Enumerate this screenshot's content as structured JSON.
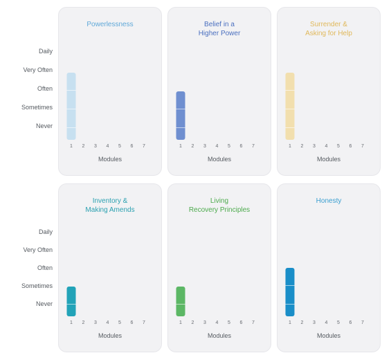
{
  "chart_data": [
    {
      "type": "bar",
      "title": "Powerlessness",
      "xlabel": "Modules",
      "color": "#c7e0f0",
      "title_color": "#5fa8d8",
      "categories": [
        "1",
        "2",
        "3",
        "4",
        "5",
        "6",
        "7"
      ],
      "values": [
        4,
        null,
        null,
        null,
        null,
        null,
        null
      ],
      "ylim": [
        1,
        5
      ],
      "yticks": [
        "Never",
        "Sometimes",
        "Often",
        "Very Often",
        "Daily"
      ]
    },
    {
      "type": "bar",
      "title": "Belief in a\nHigher Power",
      "xlabel": "Modules",
      "color": "#6f8fd0",
      "title_color": "#4a6fbf",
      "categories": [
        "1",
        "2",
        "3",
        "4",
        "5",
        "6",
        "7"
      ],
      "values": [
        3,
        null,
        null,
        null,
        null,
        null,
        null
      ],
      "ylim": [
        1,
        5
      ],
      "yticks": [
        "Never",
        "Sometimes",
        "Often",
        "Very Often",
        "Daily"
      ]
    },
    {
      "type": "bar",
      "title": "Surrender &\nAsking for Help",
      "xlabel": "Modules",
      "color": "#f2dfae",
      "title_color": "#e0b85a",
      "categories": [
        "1",
        "2",
        "3",
        "4",
        "5",
        "6",
        "7"
      ],
      "values": [
        4,
        null,
        null,
        null,
        null,
        null,
        null
      ],
      "ylim": [
        1,
        5
      ],
      "yticks": [
        "Never",
        "Sometimes",
        "Often",
        "Very Often",
        "Daily"
      ]
    },
    {
      "type": "bar",
      "title": "Inventory &\nMaking Amends",
      "xlabel": "Modules",
      "color": "#22a3b8",
      "title_color": "#2aa0b0",
      "categories": [
        "1",
        "2",
        "3",
        "4",
        "5",
        "6",
        "7"
      ],
      "values": [
        2,
        null,
        null,
        null,
        null,
        null,
        null
      ],
      "ylim": [
        1,
        5
      ],
      "yticks": [
        "Never",
        "Sometimes",
        "Often",
        "Very Often",
        "Daily"
      ]
    },
    {
      "type": "bar",
      "title": "Living\nRecovery Principles",
      "xlabel": "Modules",
      "color": "#5cb765",
      "title_color": "#4caa4c",
      "categories": [
        "1",
        "2",
        "3",
        "4",
        "5",
        "6",
        "7"
      ],
      "values": [
        2,
        null,
        null,
        null,
        null,
        null,
        null
      ],
      "ylim": [
        1,
        5
      ],
      "yticks": [
        "Never",
        "Sometimes",
        "Often",
        "Very Often",
        "Daily"
      ]
    },
    {
      "type": "bar",
      "title": "Honesty",
      "xlabel": "Modules",
      "color": "#1a8ec8",
      "title_color": "#3a9fd0",
      "categories": [
        "1",
        "2",
        "3",
        "4",
        "5",
        "6",
        "7"
      ],
      "values": [
        3,
        null,
        null,
        null,
        null,
        null,
        null
      ],
      "ylim": [
        1,
        5
      ],
      "yticks": [
        "Never",
        "Sometimes",
        "Often",
        "Very Often",
        "Daily"
      ]
    }
  ],
  "y_axis_labels": [
    "Daily",
    "Very Often",
    "Often",
    "Sometimes",
    "Never"
  ]
}
